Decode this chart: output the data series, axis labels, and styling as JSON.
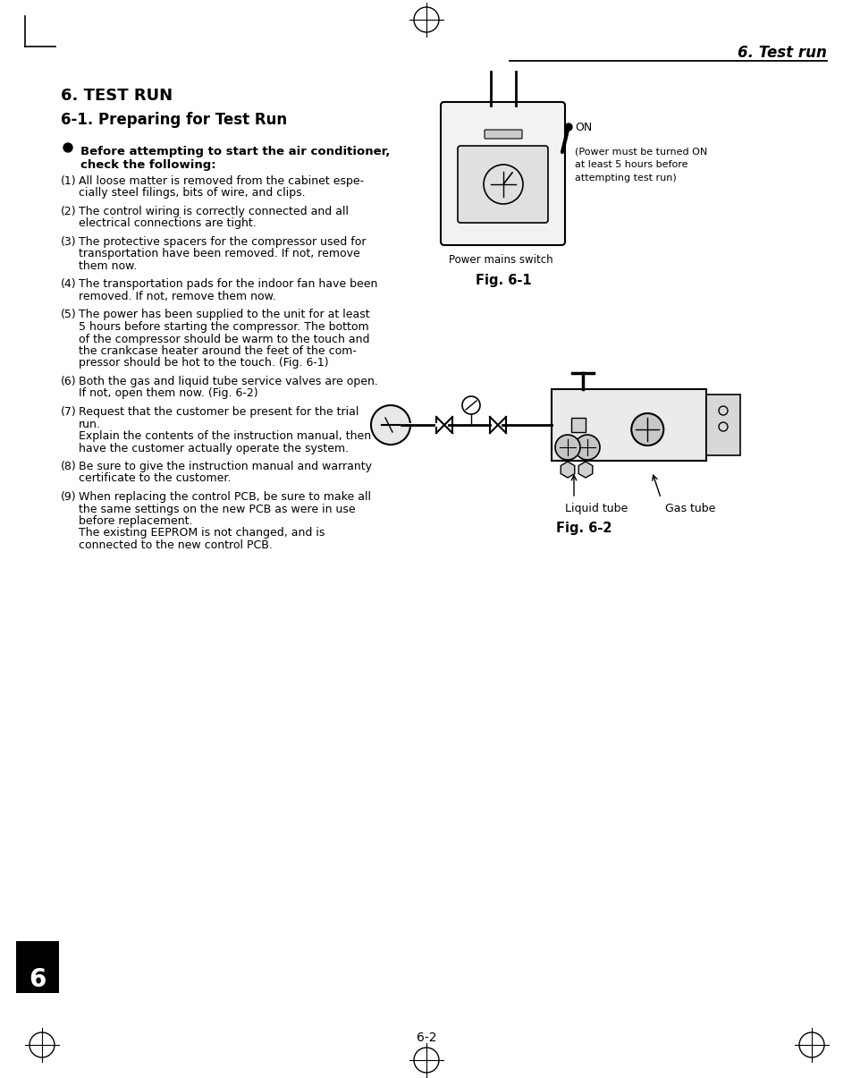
{
  "bg_color": "#ffffff",
  "text_color": "#000000",
  "header_right": "6. Test run",
  "section_title": "6. TEST RUN",
  "subsection_title": "6-1. Preparing for Test Run",
  "bullet_header_1": "Before attempting to start the air conditioner,",
  "bullet_header_2": "check the following:",
  "items": [
    [
      "(1)",
      "All loose matter is removed from the cabinet espe-\ncially steel filings, bits of wire, and clips."
    ],
    [
      "(2)",
      "The control wiring is correctly connected and all\nelectrical connections are tight."
    ],
    [
      "(3)",
      "The protective spacers for the compressor used for\ntransportation have been removed. If not, remove\nthem now."
    ],
    [
      "(4)",
      "The transportation pads for the indoor fan have been\nremoved. If not, remove them now."
    ],
    [
      "(5)",
      "The power has been supplied to the unit for at least\n5 hours before starting the compressor. The bottom\nof the compressor should be warm to the touch and\nthe crankcase heater around the feet of the com-\npressor should be hot to the touch. (Fig. 6-1)"
    ],
    [
      "(6)",
      "Both the gas and liquid tube service valves are open.\nIf not, open them now. (Fig. 6-2)"
    ],
    [
      "(7)",
      "Request that the customer be present for the trial\nrun.\nExplain the contents of the instruction manual, then\nhave the customer actually operate the system."
    ],
    [
      "(8)",
      "Be sure to give the instruction manual and warranty\ncertificate to the customer."
    ],
    [
      "(9)",
      "When replacing the control PCB, be sure to make all\nthe same settings on the new PCB as were in use\nbefore replacement.\nThe existing EEPROM is not changed, and is\nconnected to the new control PCB."
    ]
  ],
  "fig1_label": "Fig. 6-1",
  "fig2_label": "Fig. 6-2",
  "fig1_power_mains": "Power mains switch",
  "fig1_on": "ON",
  "fig1_note": "(Power must be turned ON\nat least 5 hours before\nattempting test run)",
  "fig2_liquid": "Liquid tube",
  "fig2_gas": "Gas tube",
  "page_number": "6-2",
  "tab_number": "6",
  "tab_bg": "#000000",
  "tab_text": "#ffffff"
}
